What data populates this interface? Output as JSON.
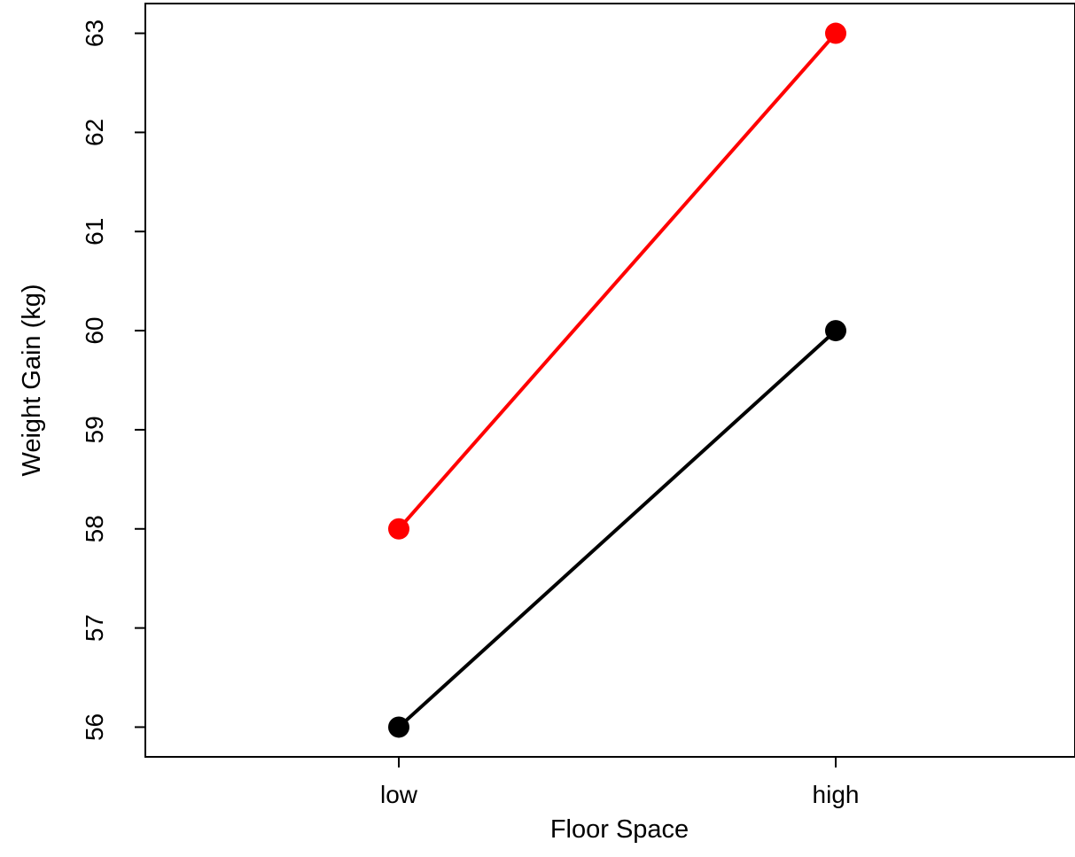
{
  "chart_data": {
    "type": "line",
    "title": "",
    "xlabel": "Floor Space",
    "ylabel": "Weight Gain (kg)",
    "categories": [
      "low",
      "high"
    ],
    "ylim": [
      55.7,
      63.3
    ],
    "yticks": [
      56,
      57,
      58,
      59,
      60,
      61,
      62,
      63
    ],
    "grid": false,
    "legend": "none",
    "series": [
      {
        "color": "#ff0000",
        "values": [
          58,
          63
        ]
      },
      {
        "color": "#000000",
        "values": [
          56,
          60
        ]
      }
    ]
  }
}
